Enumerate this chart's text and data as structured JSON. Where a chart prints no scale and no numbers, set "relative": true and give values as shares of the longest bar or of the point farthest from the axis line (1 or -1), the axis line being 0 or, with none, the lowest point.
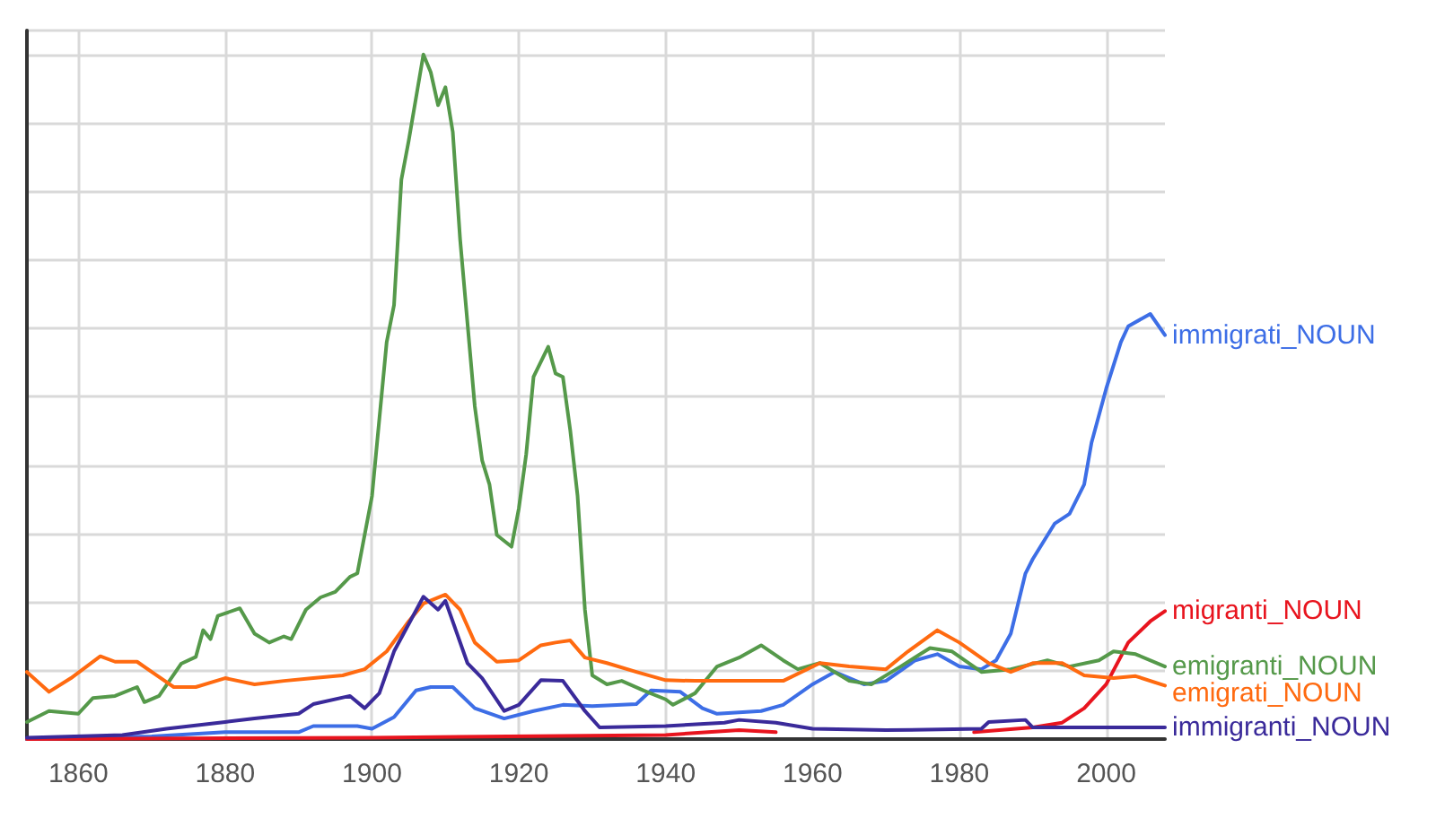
{
  "chart_data": {
    "type": "line",
    "relative": true,
    "xlim": [
      1853,
      2008
    ],
    "xticks": [
      1860,
      1880,
      1900,
      1920,
      1940,
      1960,
      1980,
      2000
    ],
    "grid": true,
    "legend": false,
    "line_style": "solid",
    "marker": "none",
    "series": [
      {
        "name": "immigrati_NOUN",
        "color": "#3d6ee6",
        "x": [
          1853,
          1870,
          1880,
          1890,
          1892,
          1898,
          1900,
          1903,
          1906,
          1908,
          1911,
          1914,
          1918,
          1922,
          1926,
          1930,
          1936,
          1938,
          1942,
          1945,
          1947,
          1953,
          1956,
          1960,
          1963,
          1967,
          1970,
          1974,
          1977,
          1980,
          1983,
          1985,
          1987,
          1989,
          1990,
          1993,
          1995,
          1997,
          1998,
          2000,
          2002,
          2003,
          2006,
          2008
        ],
        "values": [
          0,
          0.004,
          0.01,
          0.01,
          0.019,
          0.019,
          0.015,
          0.032,
          0.071,
          0.076,
          0.076,
          0.045,
          0.03,
          0.041,
          0.05,
          0.048,
          0.051,
          0.071,
          0.069,
          0.045,
          0.037,
          0.041,
          0.05,
          0.08,
          0.098,
          0.08,
          0.085,
          0.115,
          0.124,
          0.106,
          0.102,
          0.115,
          0.154,
          0.242,
          0.263,
          0.315,
          0.329,
          0.372,
          0.433,
          0.512,
          0.58,
          0.603,
          0.621,
          0.59
        ]
      },
      {
        "name": "migranti_NOUN",
        "color": "#e8141e",
        "x": [
          1853,
          1900,
          1940,
          1950,
          1955,
          1970,
          1982,
          1990,
          1994,
          1997,
          2000,
          2003,
          2006,
          2008
        ],
        "values": [
          0,
          0.002,
          0.006,
          0.013,
          0.01,
          null,
          0.01,
          0.017,
          0.024,
          0.045,
          0.08,
          0.141,
          0.172,
          0.187
        ]
      },
      {
        "name": "emigranti_NOUN",
        "color": "#55994a",
        "x": [
          1853,
          1856,
          1860,
          1862,
          1865,
          1868,
          1869,
          1871,
          1874,
          1876,
          1877,
          1878,
          1879,
          1882,
          1884,
          1886,
          1888,
          1889,
          1891,
          1893,
          1895,
          1897,
          1898,
          1900,
          1902,
          1903,
          1904,
          1905,
          1907,
          1908,
          1909,
          1910,
          1911,
          1912,
          1914,
          1915,
          1916,
          1917,
          1919,
          1920,
          1921,
          1922,
          1924,
          1925,
          1926,
          1927,
          1928,
          1929,
          1930,
          1932,
          1934,
          1937,
          1940,
          1941,
          1944,
          1947,
          1950,
          1953,
          1956,
          1958,
          1961,
          1965,
          1968,
          1972,
          1976,
          1979,
          1983,
          1987,
          1992,
          1995,
          1999,
          2001,
          2004,
          2008
        ],
        "values": [
          0.025,
          0.041,
          0.037,
          0.06,
          0.063,
          0.076,
          0.054,
          0.063,
          0.11,
          0.12,
          0.159,
          0.146,
          0.18,
          0.191,
          0.154,
          0.141,
          0.15,
          0.146,
          0.189,
          0.207,
          0.215,
          0.237,
          0.242,
          0.355,
          0.58,
          0.634,
          0.817,
          0.874,
          1,
          0.974,
          0.926,
          0.952,
          0.887,
          0.73,
          0.486,
          0.407,
          0.372,
          0.298,
          0.281,
          0.337,
          0.416,
          0.529,
          0.573,
          0.534,
          0.529,
          0.451,
          0.355,
          0.189,
          0.093,
          0.08,
          0.085,
          0.071,
          0.058,
          0.05,
          0.067,
          0.106,
          0.119,
          0.137,
          0.115,
          0.102,
          0.111,
          0.085,
          0.08,
          0.106,
          0.133,
          0.128,
          0.098,
          0.102,
          0.115,
          0.106,
          0.115,
          0.128,
          0.124,
          0.106
        ]
      },
      {
        "name": "emigrati_NOUN",
        "color": "#ff6a10",
        "x": [
          1853,
          1856,
          1859,
          1863,
          1865,
          1868,
          1870,
          1873,
          1876,
          1880,
          1884,
          1888,
          1892,
          1896,
          1899,
          1902,
          1905,
          1907,
          1910,
          1912,
          1914,
          1917,
          1920,
          1923,
          1925,
          1927,
          1929,
          1932,
          1936,
          1940,
          1944,
          1950,
          1956,
          1961,
          1965,
          1970,
          1973,
          1977,
          1980,
          1984,
          1987,
          1990,
          1994,
          1997,
          2001,
          2004,
          2008
        ],
        "values": [
          0.098,
          0.069,
          0.089,
          0.121,
          0.113,
          0.113,
          0.098,
          0.076,
          0.076,
          0.089,
          0.08,
          0.085,
          0.089,
          0.093,
          0.102,
          0.128,
          0.172,
          0.198,
          0.211,
          0.189,
          0.141,
          0.113,
          0.115,
          0.137,
          0.141,
          0.144,
          0.119,
          0.111,
          0.098,
          0.086,
          0.085,
          0.085,
          0.085,
          0.111,
          0.106,
          0.102,
          0.128,
          0.159,
          0.141,
          0.111,
          0.098,
          0.111,
          0.111,
          0.093,
          0.089,
          0.092,
          0.078
        ]
      },
      {
        "name": "immigranti_NOUN",
        "color": "#3a2a9a",
        "x": [
          1853,
          1866,
          1872,
          1880,
          1884,
          1890,
          1892,
          1897,
          1899,
          1901,
          1903,
          1907,
          1909,
          1910,
          1913,
          1915,
          1918,
          1920,
          1923,
          1926,
          1929,
          1931,
          1940,
          1948,
          1950,
          1955,
          1960,
          1970,
          1983,
          1984,
          1989,
          1990,
          2008
        ],
        "values": [
          0.002,
          0.006,
          0.015,
          0.025,
          0.03,
          0.037,
          0.051,
          0.063,
          0.045,
          0.067,
          0.128,
          0.208,
          0.189,
          0.202,
          0.111,
          0.089,
          0.041,
          0.05,
          0.086,
          0.085,
          0.041,
          0.017,
          0.019,
          0.024,
          0.028,
          0.024,
          0.015,
          0.013,
          0.015,
          0.025,
          0.028,
          0.017,
          0.017
        ]
      }
    ]
  }
}
